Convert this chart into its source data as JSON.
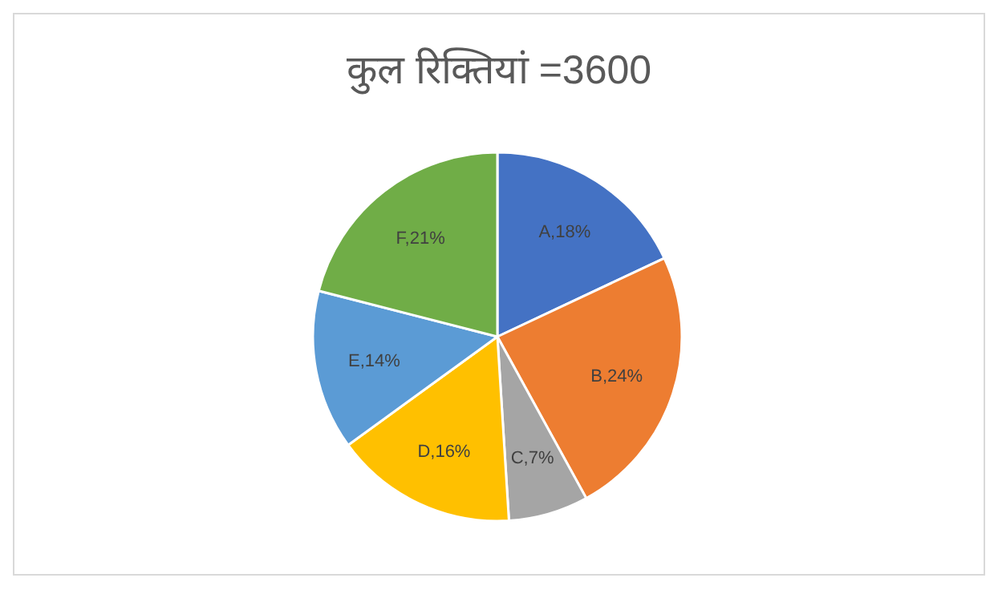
{
  "chart_data": {
    "type": "pie",
    "title": "कुल रिक्तियां =3600",
    "categories": [
      "A",
      "B",
      "C",
      "D",
      "E",
      "F"
    ],
    "values": [
      18,
      24,
      7,
      16,
      14,
      21
    ],
    "colors": [
      "#4472c4",
      "#ed7d31",
      "#a5a5a5",
      "#ffc000",
      "#5b9bd5",
      "#70ad47"
    ],
    "value_labels": [
      ",18%",
      ",24%",
      ",7%",
      ",16%",
      ",14%",
      ",21%"
    ],
    "legend": false
  }
}
